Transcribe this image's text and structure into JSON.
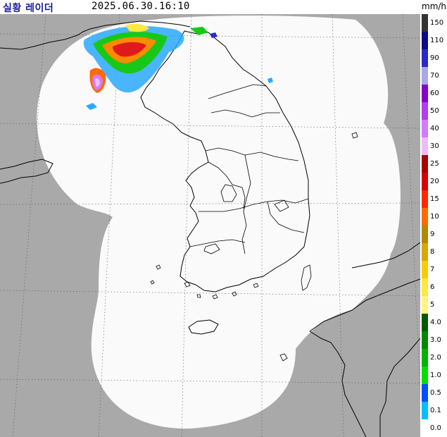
{
  "header": {
    "title": "실황 레이더",
    "timestamp": "2025.06.30.16:10",
    "unit": "mm/h"
  },
  "legend": {
    "levels": [
      {
        "label": "150",
        "color": "#333333"
      },
      {
        "label": "110",
        "color": "#0c0c8a"
      },
      {
        "label": "90",
        "color": "#2a2ac8"
      },
      {
        "label": "70",
        "color": "#a8a8e8"
      },
      {
        "label": "60",
        "color": "#8800cc"
      },
      {
        "label": "50",
        "color": "#b43cf0"
      },
      {
        "label": "40",
        "color": "#d27cf8"
      },
      {
        "label": "30",
        "color": "#ecbcfc"
      },
      {
        "label": "25",
        "color": "#aa0000"
      },
      {
        "label": "20",
        "color": "#d80000"
      },
      {
        "label": "15",
        "color": "#ff2a00"
      },
      {
        "label": "10",
        "color": "#ff6a00"
      },
      {
        "label": "9",
        "color": "#b08a00"
      },
      {
        "label": "8",
        "color": "#d8a800"
      },
      {
        "label": "7",
        "color": "#f8cc00"
      },
      {
        "label": "6",
        "color": "#ffe840"
      },
      {
        "label": "5",
        "color": "#fff480"
      },
      {
        "label": "4.0",
        "color": "#005a00"
      },
      {
        "label": "3.0",
        "color": "#008a00"
      },
      {
        "label": "2.0",
        "color": "#00b400"
      },
      {
        "label": "1.0",
        "color": "#00e000"
      },
      {
        "label": "0.5",
        "color": "#0050ff"
      },
      {
        "label": "0.1",
        "color": "#00c0ff"
      },
      {
        "label": "0.0",
        "color": "#ffffff"
      }
    ]
  },
  "map": {
    "background_color": "#a9a9a9",
    "coverage_color": "#fafafa",
    "coast_color": "#000000",
    "grid_color": "#555555"
  }
}
